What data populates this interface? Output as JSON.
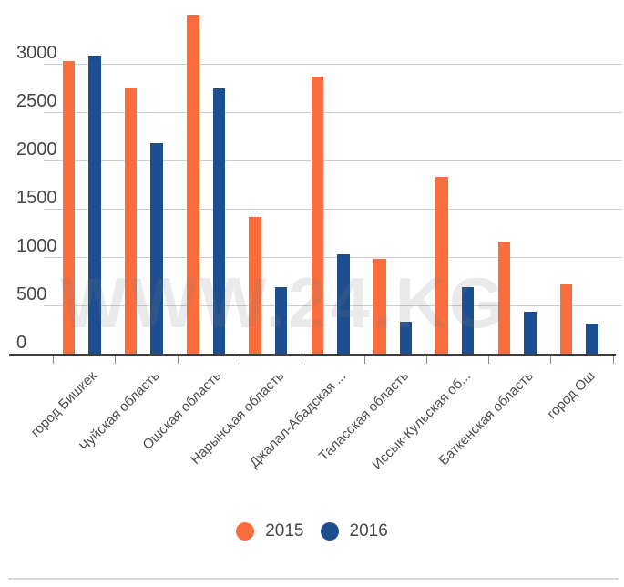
{
  "chart_data": {
    "type": "bar",
    "title": "",
    "xlabel": "",
    "ylabel": "",
    "categories": [
      "город Бишкек",
      "Чуйская область",
      "Ошская область",
      "Нарынская область",
      "Джалал-Абадская ...",
      "Таласская область",
      "Иссык-Кульская об...",
      "Баткенская область",
      "город Ош"
    ],
    "series": [
      {
        "name": "2015",
        "color": "#fa6e3d",
        "values": [
          3040,
          2770,
          3510,
          1430,
          2880,
          990,
          1840,
          1170,
          730
        ]
      },
      {
        "name": "2016",
        "color": "#1d4e8f",
        "values": [
          3100,
          2190,
          2760,
          700,
          1040,
          340,
          700,
          440,
          320
        ]
      }
    ],
    "ylim": [
      0,
      3675
    ],
    "yticks": [
      "0",
      "500",
      "1000",
      "1500",
      "2000",
      "2500",
      "3000"
    ],
    "grid": "horizontal",
    "legend_position": "bottom"
  },
  "legend": {
    "items": [
      {
        "label": "2015",
        "color": "#fa6e3d"
      },
      {
        "label": "2016",
        "color": "#1d4e8f"
      }
    ]
  },
  "watermark": {
    "text": "WWW.24.KG"
  },
  "colors": {
    "bar_2015": "#fa6e3d",
    "bar_2016": "#1d4e8f",
    "gridline": "#cccccc",
    "axis_line": "#3f3f3f",
    "axis_text": "#474747",
    "watermark": "#ececec"
  }
}
